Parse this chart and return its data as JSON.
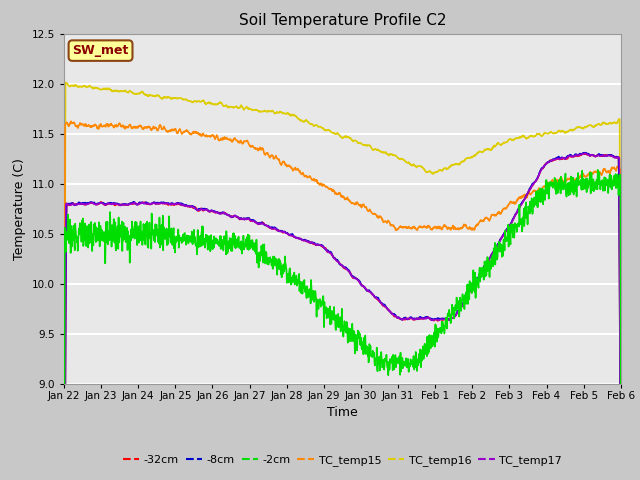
{
  "title": "Soil Temperature Profile C2",
  "xlabel": "Time",
  "ylabel": "Temperature (C)",
  "ylim": [
    9.0,
    12.5
  ],
  "yticks": [
    9.0,
    9.5,
    10.0,
    10.5,
    11.0,
    11.5,
    12.0,
    12.5
  ],
  "plot_bg_color": "#e8e8e8",
  "fig_bg_color": "#c8c8c8",
  "grid_color": "white",
  "annotation_text": "SW_met",
  "annotation_bg": "#ffff99",
  "annotation_border": "#8B4513",
  "annotation_text_color": "#8B0000",
  "series": {
    "neg32cm": {
      "color": "#ff0000",
      "label": "-32cm",
      "lw": 1.2
    },
    "neg8cm": {
      "color": "#0000cc",
      "label": "-8cm",
      "lw": 1.2
    },
    "neg2cm": {
      "color": "#00dd00",
      "label": "-2cm",
      "lw": 1.2
    },
    "tc15": {
      "color": "#ff8800",
      "label": "TC_temp15",
      "lw": 1.2
    },
    "tc16": {
      "color": "#ddcc00",
      "label": "TC_temp16",
      "lw": 1.2
    },
    "tc17": {
      "color": "#9900cc",
      "label": "TC_temp17",
      "lw": 1.2
    }
  },
  "xtick_labels": [
    "Jan 22",
    "Jan 23",
    "Jan 24",
    "Jan 25",
    "Jan 26",
    "Jan 27",
    "Jan 28",
    "Jan 29",
    "Jan 30",
    "Jan 31",
    "Feb 1",
    "Feb 2",
    "Feb 3",
    "Feb 4",
    "Feb 5",
    "Feb 6"
  ],
  "xtick_positions": [
    0,
    1,
    2,
    3,
    4,
    5,
    6,
    7,
    8,
    9,
    10,
    11,
    12,
    13,
    14,
    15
  ]
}
